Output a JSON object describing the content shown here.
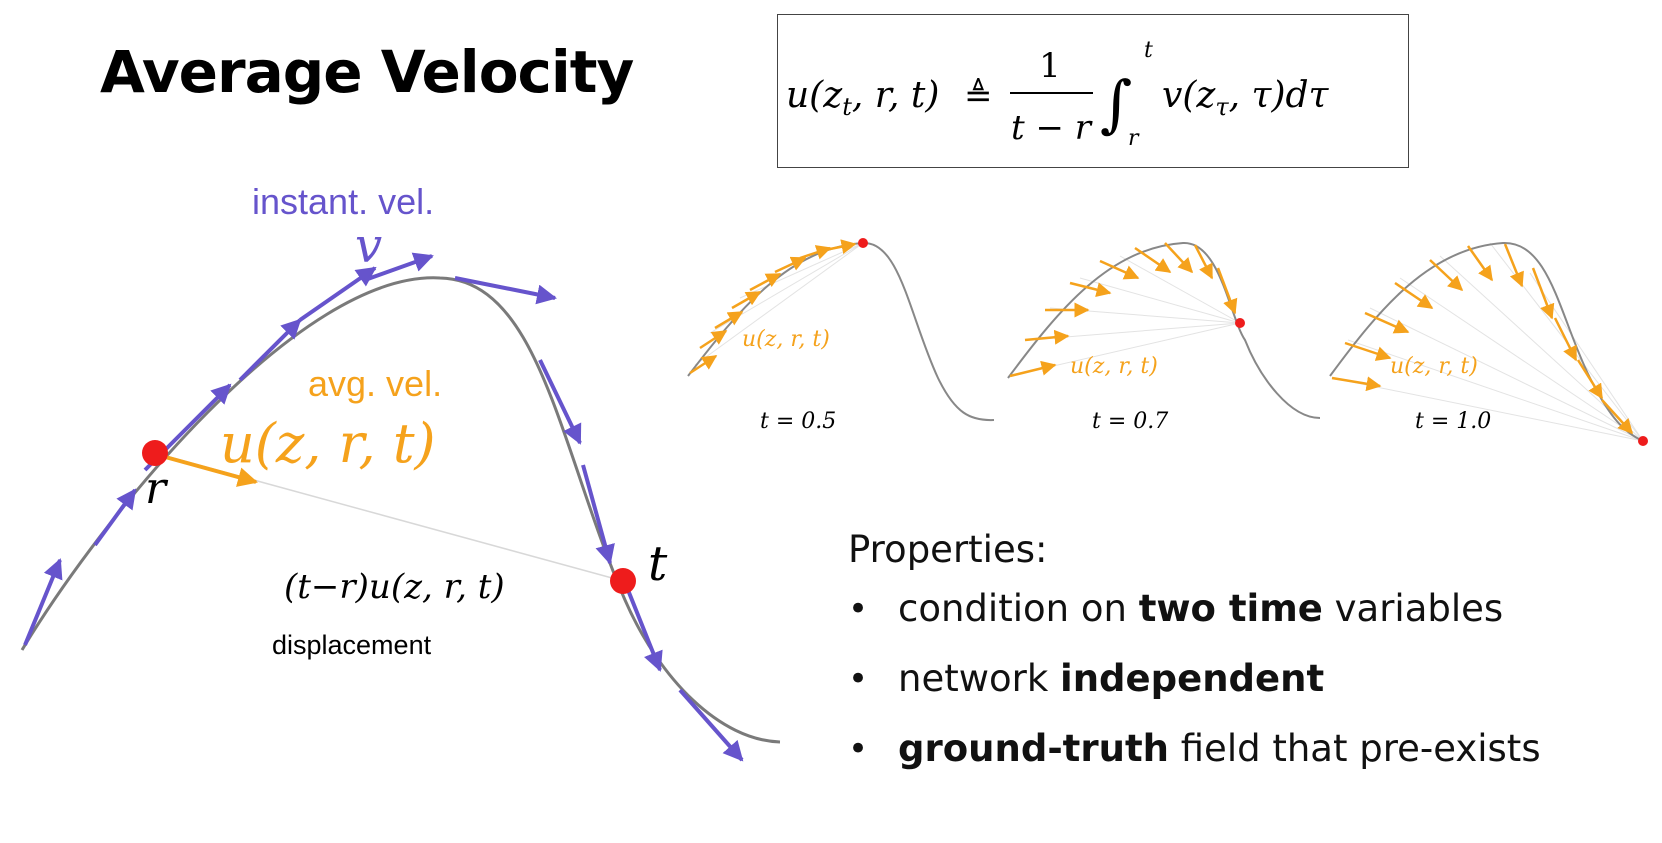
{
  "title": "Average Velocity",
  "formula": {
    "lhs": "u(z",
    "lhs_sub": "t",
    "lhs_rest": ", r, t)",
    "defeq": "≜",
    "numerator": "1",
    "denominator": "t − r",
    "integral": "∫",
    "upper_limit": "t",
    "lower_limit": "r",
    "integrand": "v(z",
    "integrand_sub": "τ",
    "integrand_rest": ", τ)dτ"
  },
  "main_diagram": {
    "instant_label": "instant. vel.",
    "instant_symbol": "v",
    "avg_label": "avg. vel.",
    "avg_symbol": "u(z, r, t)",
    "point_r": "r",
    "point_t": "t",
    "displacement_formula": "(t−r)u(z, r, t)",
    "displacement_label": "displacement"
  },
  "panels": [
    {
      "label": "t = 0.5",
      "field": "u(z, r, t)"
    },
    {
      "label": "t = 0.7",
      "field": "u(z, r, t)"
    },
    {
      "label": "t = 1.0",
      "field": "u(z, r, t)"
    }
  ],
  "properties": {
    "heading": "Properties:",
    "items": [
      {
        "before": "condition on ",
        "bold": "two time",
        "after": " variables"
      },
      {
        "before": "network ",
        "bold": "independent",
        "after": ""
      },
      {
        "before": "",
        "bold": "ground-truth",
        "after": " field that pre-exists"
      }
    ]
  },
  "colors": {
    "instant": "#6654cc",
    "avg": "#f5a21c",
    "point": "#ee1c1c",
    "curve": "#7a7a7a"
  }
}
